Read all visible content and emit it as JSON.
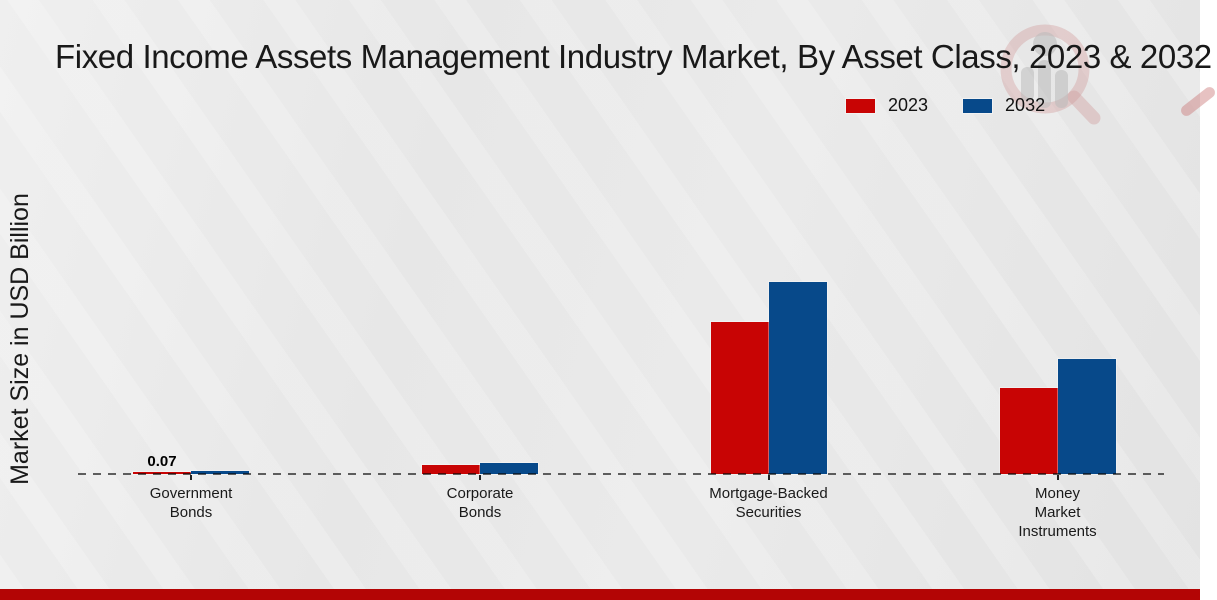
{
  "chart_data": {
    "type": "bar",
    "title": "Fixed Income Assets Management Industry Market, By Asset Class, 2023 & 2032",
    "ylabel": "Market Size in USD Billion",
    "xlabel": "",
    "categories": [
      "Government Bonds",
      "Corporate Bonds",
      "Mortgage-Backed Securities",
      "Money Market Instruments"
    ],
    "category_lines": [
      [
        "Government",
        "Bonds"
      ],
      [
        "Corporate",
        "Bonds"
      ],
      [
        "Mortgage-Backed",
        "Securities"
      ],
      [
        "Money",
        "Market",
        "Instruments"
      ]
    ],
    "series": [
      {
        "name": "2023",
        "color": "#c80404",
        "values": [
          0.07,
          0.32,
          5.32,
          3.0
        ]
      },
      {
        "name": "2032",
        "color": "#07498a",
        "values": [
          0.11,
          0.39,
          6.72,
          4.02
        ]
      }
    ],
    "annotations": [
      {
        "text": "0.07",
        "category": "Government Bonds",
        "series": "2023"
      }
    ],
    "ylim": [
      0,
      7.5
    ],
    "grid": false,
    "legend_position": "top-right",
    "baseline_style": "dashed"
  },
  "watermark": {
    "icon": "magnifier-bar-chart-logo"
  },
  "page": {
    "background_color": "#e8e8e8",
    "footer_bar_color": "#b30505"
  }
}
